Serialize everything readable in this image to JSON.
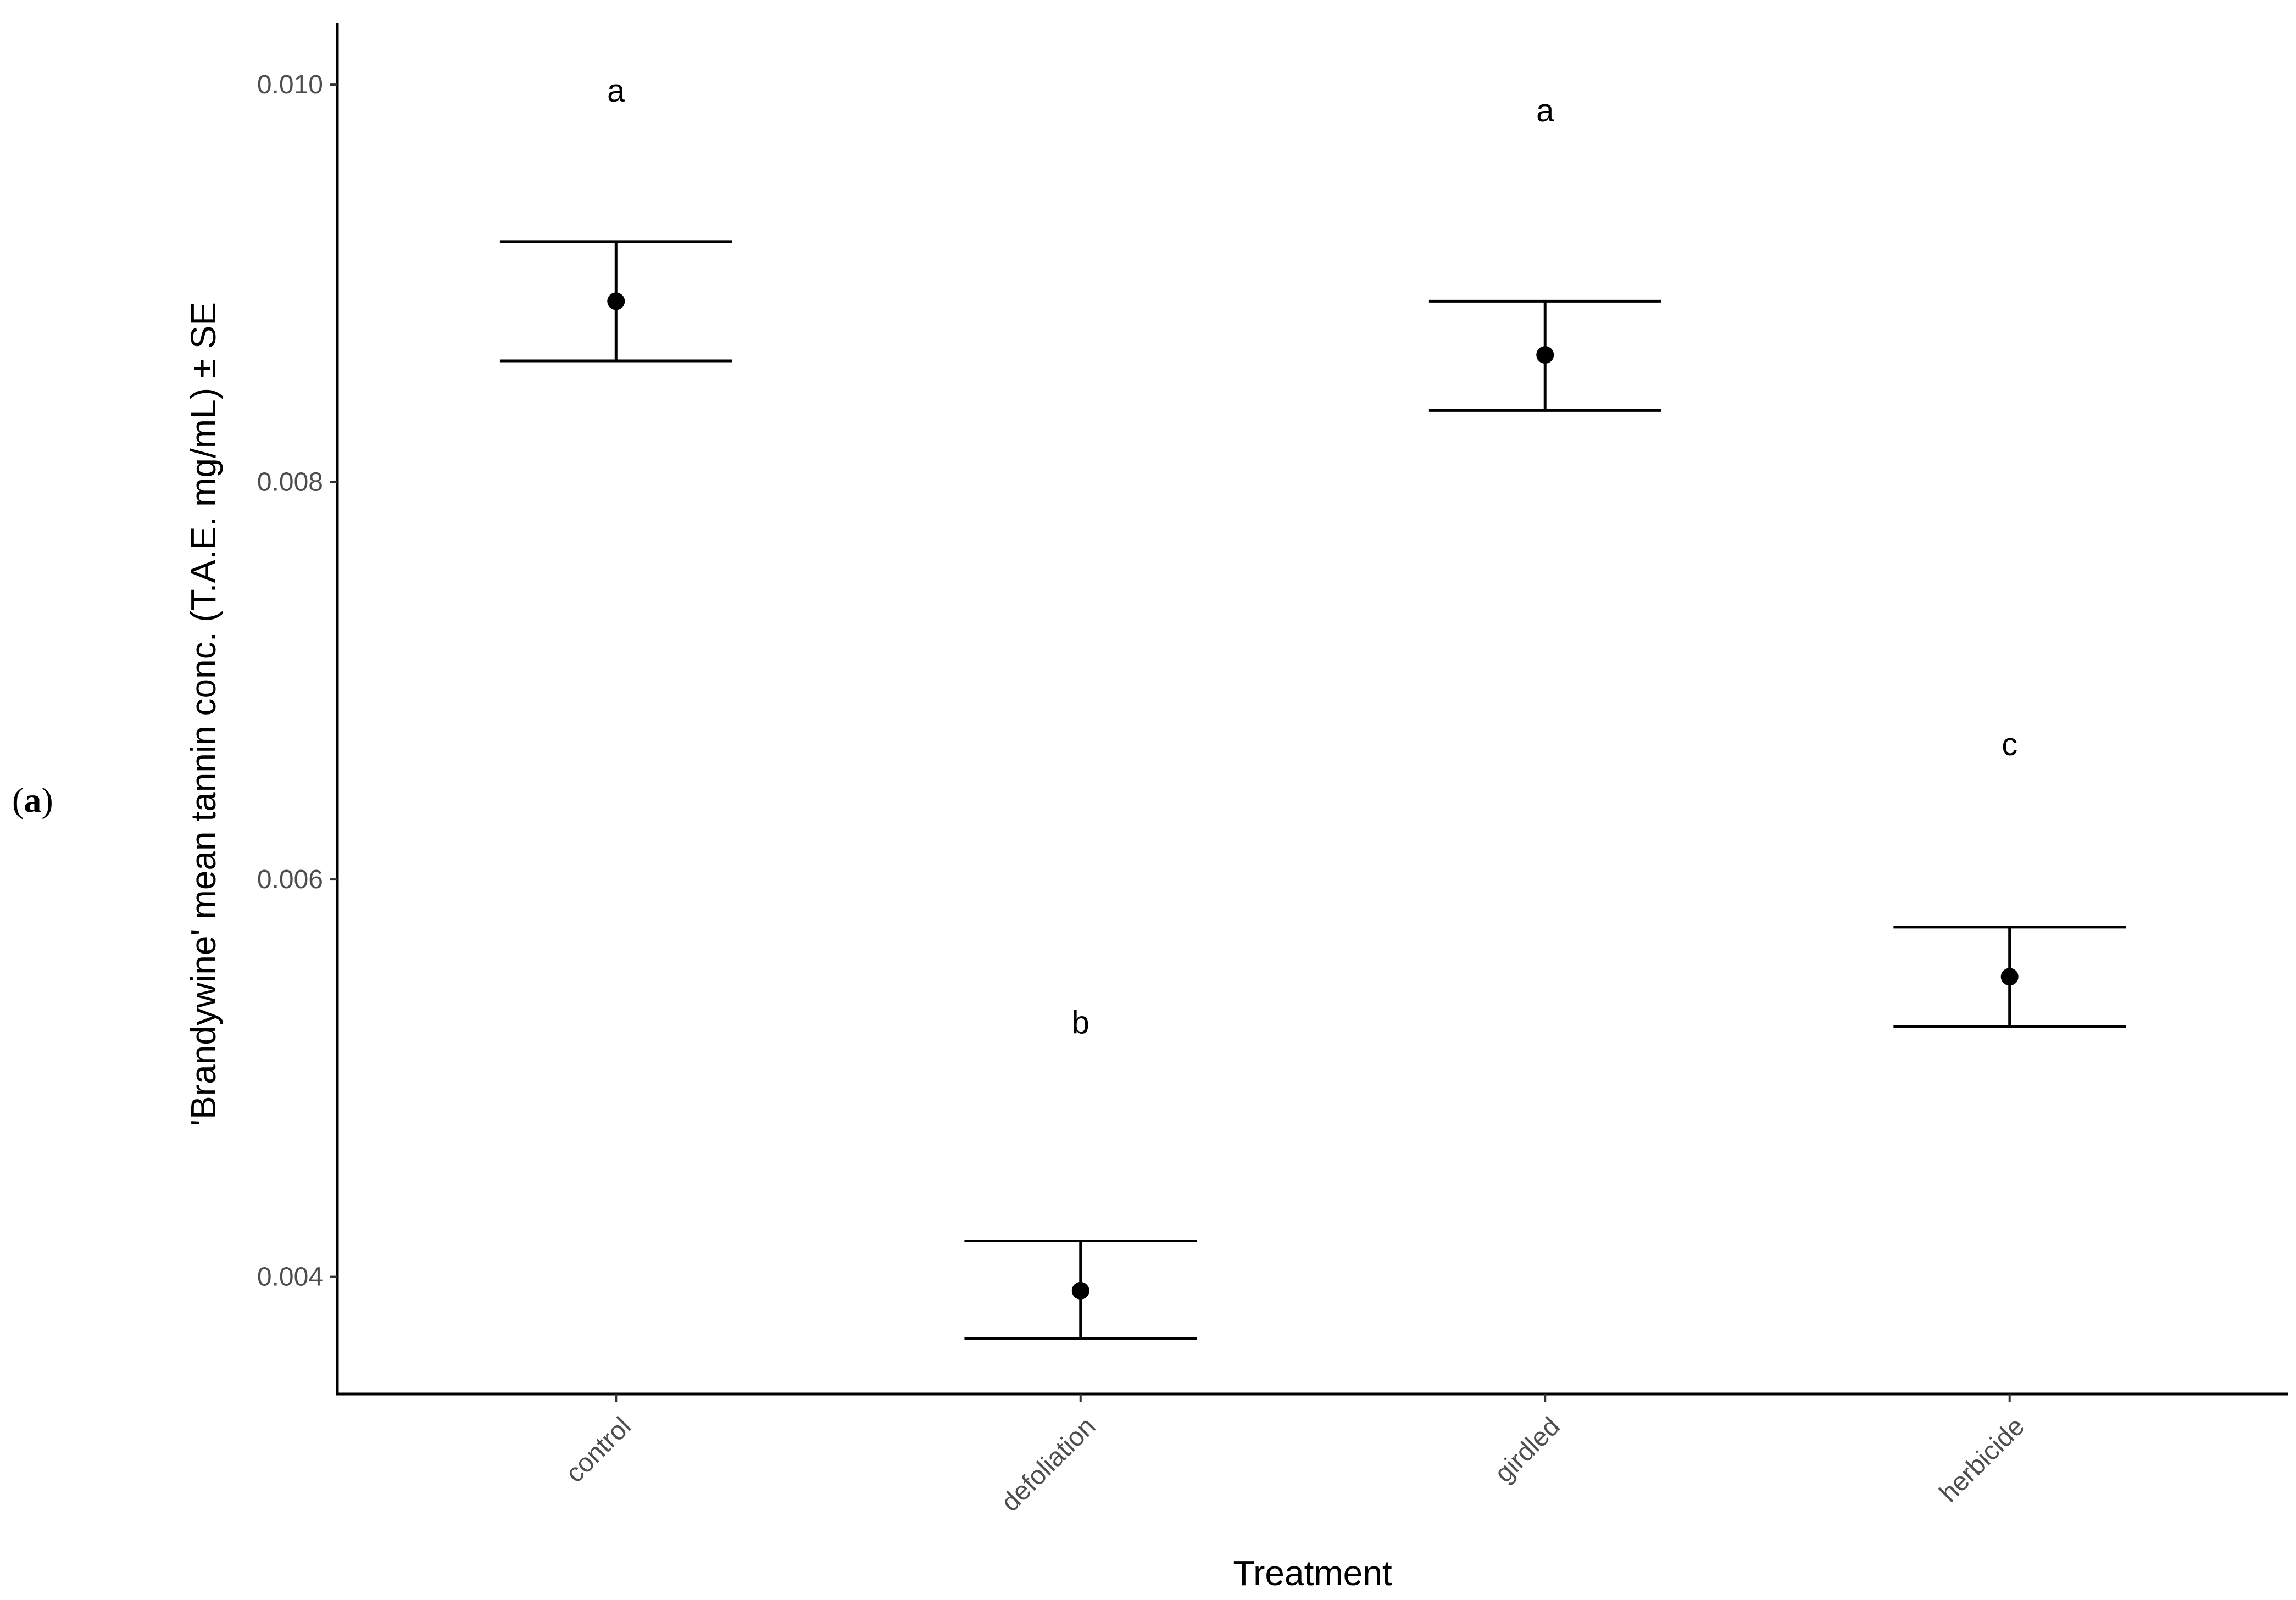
{
  "panel_label": {
    "open": "(",
    "letter": "a",
    "close": ")"
  },
  "chart_data": {
    "type": "scatter",
    "subtype": "point-with-error-bars",
    "title": "",
    "xlabel": "Treatment",
    "ylabel": "'Brandywine' mean tannin conc. (T.A.E. mg/mL) ± SE",
    "categories": [
      "control",
      "defoliation",
      "girdled",
      "herbicide"
    ],
    "means": [
      0.00891,
      0.00393,
      0.00864,
      0.00551
    ],
    "se_lower": [
      0.00861,
      0.00369,
      0.00836,
      0.00526
    ],
    "se_upper": [
      0.00921,
      0.00418,
      0.00891,
      0.00576
    ],
    "group_letters": [
      {
        "category": "control",
        "letter": "a",
        "y": 0.00997
      },
      {
        "category": "defoliation",
        "letter": "b",
        "y": 0.00528
      },
      {
        "category": "girdled",
        "letter": "a",
        "y": 0.00987
      },
      {
        "category": "herbicide",
        "letter": "c",
        "y": 0.00668
      }
    ],
    "ylim": [
      0.00341,
      0.01031
    ],
    "yticks": [
      0.004,
      0.006,
      0.008,
      0.01
    ],
    "ytick_labels": [
      "0.004",
      "0.006",
      "0.008",
      "0.010"
    ],
    "grid": false,
    "legend": "none",
    "colors": {
      "points": "#000000",
      "axes": "#000000",
      "tick_labels": "#4d4d4d"
    }
  }
}
